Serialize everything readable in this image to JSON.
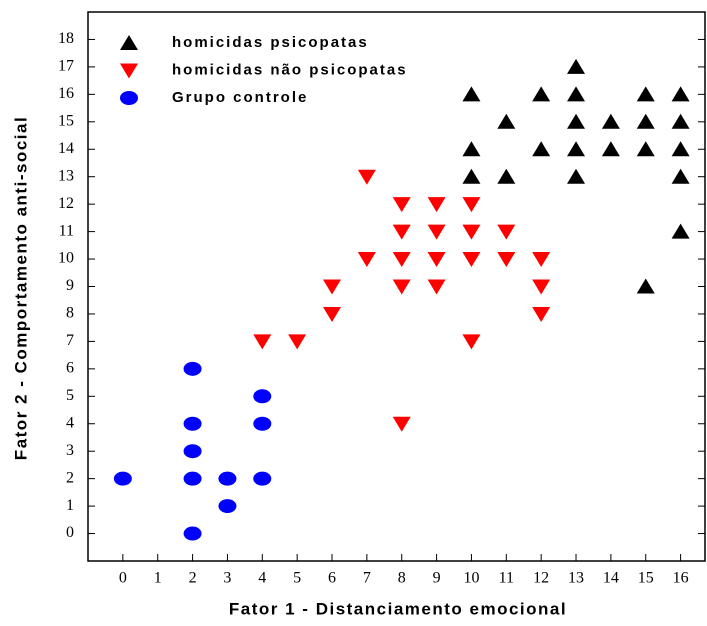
{
  "chart_data": {
    "type": "scatter",
    "xlabel": "Fator 1 - Distanciamento emocional",
    "ylabel": "Fator 2 - Comportamento anti-social",
    "xlim": [
      -1,
      16.7
    ],
    "ylim": [
      -1,
      19
    ],
    "xticks": [
      0,
      1,
      2,
      3,
      4,
      5,
      6,
      7,
      8,
      9,
      10,
      11,
      12,
      13,
      14,
      15,
      16
    ],
    "yticks": [
      0,
      1,
      2,
      3,
      4,
      5,
      6,
      7,
      8,
      9,
      10,
      11,
      12,
      13,
      14,
      15,
      16,
      17,
      18
    ],
    "legend": "upper left",
    "series": [
      {
        "name": "homicidas psicopatas",
        "color": "#000000",
        "marker": "triangle-up",
        "x": [
          10,
          10,
          10,
          11,
          11,
          12,
          12,
          13,
          13,
          13,
          13,
          13,
          14,
          14,
          15,
          15,
          15,
          15,
          16,
          16,
          16,
          16,
          16
        ],
        "y": [
          16,
          14,
          13,
          15,
          13,
          16,
          14,
          17,
          16,
          15,
          14,
          13,
          15,
          14,
          16,
          15,
          14,
          9,
          16,
          15,
          14,
          13,
          11
        ]
      },
      {
        "name": "homicidas não psicopatas",
        "color": "#ff0000",
        "marker": "triangle-down",
        "x": [
          4,
          5,
          6,
          6,
          7,
          7,
          8,
          8,
          8,
          8,
          8,
          9,
          9,
          9,
          9,
          10,
          10,
          10,
          10,
          11,
          11,
          12,
          12,
          12
        ],
        "y": [
          7,
          7,
          9,
          8,
          13,
          10,
          12,
          11,
          10,
          9,
          4,
          12,
          11,
          10,
          9,
          12,
          11,
          10,
          7,
          11,
          10,
          10,
          9,
          8
        ]
      },
      {
        "name": "Grupo controle",
        "color": "#0000ff",
        "marker": "circle",
        "x": [
          0,
          2,
          2,
          2,
          2,
          2,
          3,
          3,
          4,
          4,
          4
        ],
        "y": [
          2,
          6,
          4,
          3,
          2,
          0,
          2,
          1,
          5,
          4,
          2
        ]
      }
    ]
  }
}
